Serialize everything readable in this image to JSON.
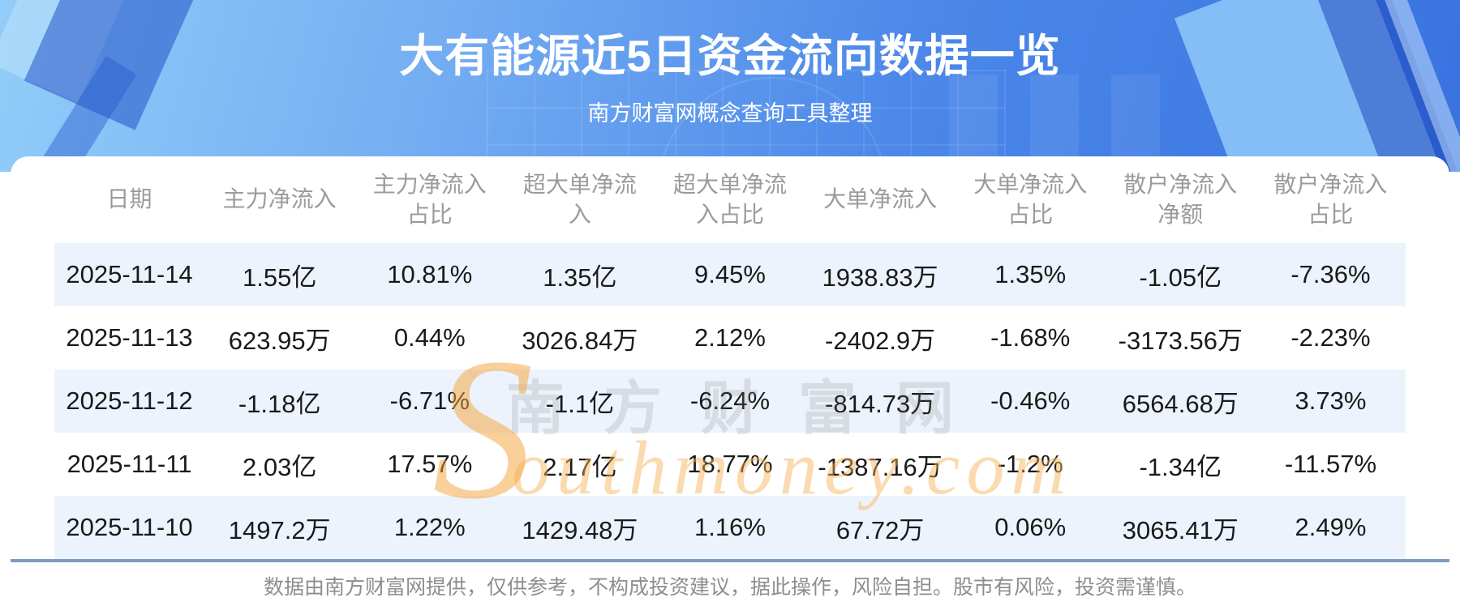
{
  "chart_data": {
    "type": "table",
    "title": "大有能源近5日资金流向数据一览",
    "subtitle": "南方财富网概念查询工具整理",
    "columns": [
      "日期",
      "主力净流入",
      "主力净流入占比",
      "超大单净流入",
      "超大单净流入占比",
      "大单净流入",
      "大单净流入占比",
      "散户净流入净额",
      "散户净流入占比"
    ],
    "rows": [
      [
        "2025-11-14",
        "1.55亿",
        "10.81%",
        "1.35亿",
        "9.45%",
        "1938.83万",
        "1.35%",
        "-1.05亿",
        "-7.36%"
      ],
      [
        "2025-11-13",
        "623.95万",
        "0.44%",
        "3026.84万",
        "2.12%",
        "-2402.9万",
        "-1.68%",
        "-3173.56万",
        "-2.23%"
      ],
      [
        "2025-11-12",
        "-1.18亿",
        "-6.71%",
        "-1.1亿",
        "-6.24%",
        "-814.73万",
        "-0.46%",
        "6564.68万",
        "3.73%"
      ],
      [
        "2025-11-11",
        "2.03亿",
        "17.57%",
        "2.17亿",
        "18.77%",
        "-1387.16万",
        "-1.2%",
        "-1.34亿",
        "-11.57%"
      ],
      [
        "2025-11-10",
        "1497.2万",
        "1.22%",
        "1429.48万",
        "1.16%",
        "67.72万",
        "0.06%",
        "3065.41万",
        "2.49%"
      ]
    ]
  },
  "watermark": {
    "cn": "南方财富网",
    "en_initial": "S",
    "en_rest": "outhmoney.com"
  },
  "footer": "数据由南方财富网提供，仅供参考，不构成投资建议，据此操作，风险自担。股市有风险，投资需谨慎。",
  "colors": {
    "hero_blue_light": "#92cdf9",
    "hero_blue_dark": "#3a73e1",
    "row_stripe": "#edf3fc",
    "divider": "#7e9bbd",
    "header_text": "#9b9b9b",
    "body_text": "#1a1a1a",
    "watermark_orange": "#f4a236"
  }
}
